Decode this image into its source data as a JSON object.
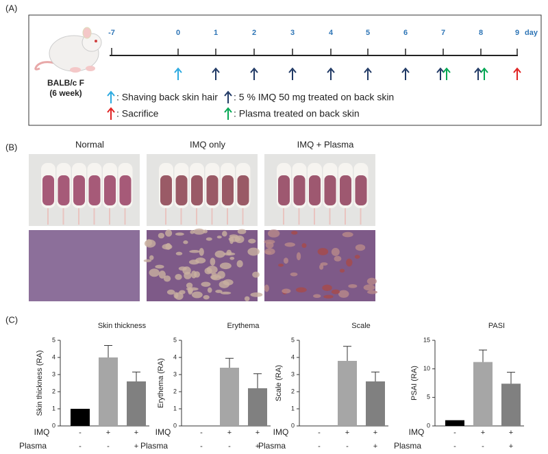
{
  "panel_a": {
    "label": "(A)",
    "strain": "BALB/c F",
    "age": "(6 week)",
    "days": [
      "-7",
      "0",
      "1",
      "2",
      "3",
      "4",
      "5",
      "6",
      "7",
      "8",
      "9"
    ],
    "day_unit": "day",
    "legend": [
      {
        "text": ": Shaving back skin hair",
        "color": "#2aa9e0"
      },
      {
        "text": ": 5 % IMQ 50 mg treated on back skin",
        "color": "#1f3864"
      },
      {
        "text": ": Sacrifice",
        "color": "#e02020"
      },
      {
        "text": ": Plasma treated on back skin",
        "color": "#00a651"
      }
    ]
  },
  "panel_b": {
    "label": "(B)",
    "groups": [
      "Normal",
      "IMQ only",
      "IMQ + Plasma"
    ]
  },
  "panel_c_label": "(C)",
  "chart_data": [
    {
      "type": "bar",
      "title": "Skin thickness",
      "ylabel": "Skin thickness (RA)",
      "ylim": [
        0,
        5
      ],
      "yticks": [
        0,
        1,
        2,
        3,
        4,
        5
      ],
      "values": [
        1,
        4.0,
        2.6
      ],
      "errors": [
        0,
        0.7,
        0.55
      ],
      "colors": [
        "#000000",
        "#a6a6a6",
        "#808080"
      ],
      "rows": [
        {
          "label": "IMQ",
          "signs": [
            "-",
            "+",
            "+"
          ]
        },
        {
          "label": "Plasma",
          "signs": [
            "-",
            "-",
            "+"
          ]
        }
      ]
    },
    {
      "type": "bar",
      "title": "Erythema",
      "ylabel": "Erythema (RA)",
      "ylim": [
        0,
        5
      ],
      "yticks": [
        0,
        1,
        2,
        3,
        4,
        5
      ],
      "values": [
        0,
        3.4,
        2.2
      ],
      "errors": [
        0,
        0.55,
        0.85
      ],
      "colors": [
        "#000000",
        "#a6a6a6",
        "#808080"
      ],
      "rows": [
        {
          "label": "IMQ",
          "signs": [
            "-",
            "+",
            "+"
          ]
        },
        {
          "label": "Plasma",
          "signs": [
            "-",
            "-",
            "+"
          ]
        }
      ]
    },
    {
      "type": "bar",
      "title": "Scale",
      "ylabel": "Scale (RA)",
      "ylim": [
        0,
        5
      ],
      "yticks": [
        0,
        1,
        2,
        3,
        4,
        5
      ],
      "values": [
        0,
        3.8,
        2.6
      ],
      "errors": [
        0,
        0.85,
        0.55
      ],
      "colors": [
        "#000000",
        "#a6a6a6",
        "#808080"
      ],
      "rows": [
        {
          "label": "IMQ",
          "signs": [
            "-",
            "+",
            "+"
          ]
        },
        {
          "label": "Plasma",
          "signs": [
            "-",
            "-",
            "+"
          ]
        }
      ]
    },
    {
      "type": "bar",
      "title": "PASI",
      "ylabel": "PSAI (RA)",
      "ylim": [
        0,
        15
      ],
      "yticks": [
        0,
        5,
        10,
        15
      ],
      "values": [
        1,
        11.2,
        7.4
      ],
      "errors": [
        0,
        2.1,
        2.0
      ],
      "colors": [
        "#000000",
        "#a6a6a6",
        "#808080"
      ],
      "rows": [
        {
          "label": "IMQ",
          "signs": [
            "-",
            "+",
            "+"
          ]
        },
        {
          "label": "Plasma",
          "signs": [
            "-",
            "-",
            "+"
          ]
        }
      ]
    }
  ]
}
